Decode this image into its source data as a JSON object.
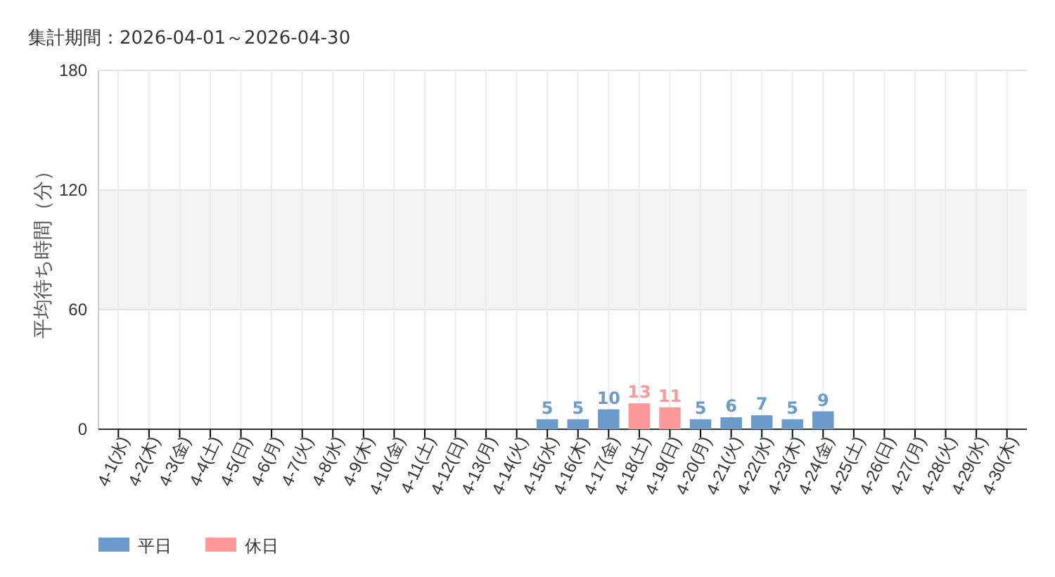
{
  "chart_data": {
    "type": "bar",
    "title": "集計期間：2026-04-01～2026-04-30",
    "ylabel": "平均待ち時間（分）",
    "categories": [
      "4-1(水)",
      "4-2(木)",
      "4-3(金)",
      "4-4(土)",
      "4-5(日)",
      "4-6(月)",
      "4-7(火)",
      "4-8(水)",
      "4-9(木)",
      "4-10(金)",
      "4-11(土)",
      "4-12(日)",
      "4-13(月)",
      "4-14(火)",
      "4-15(水)",
      "4-16(木)",
      "4-17(金)",
      "4-18(土)",
      "4-19(日)",
      "4-20(月)",
      "4-21(火)",
      "4-22(水)",
      "4-23(木)",
      "4-24(金)",
      "4-25(土)",
      "4-26(日)",
      "4-27(月)",
      "4-28(火)",
      "4-29(水)",
      "4-30(木)"
    ],
    "series": [
      {
        "name": "平日",
        "color": "#6b9bcb",
        "values": [
          null,
          null,
          null,
          null,
          null,
          null,
          null,
          null,
          null,
          null,
          null,
          null,
          null,
          null,
          5,
          5,
          10,
          null,
          null,
          5,
          6,
          7,
          5,
          9,
          null,
          null,
          null,
          null,
          null,
          null
        ]
      },
      {
        "name": "休日",
        "color": "#ff9999",
        "values": [
          null,
          null,
          null,
          null,
          null,
          null,
          null,
          null,
          null,
          null,
          null,
          null,
          null,
          null,
          null,
          null,
          null,
          13,
          11,
          null,
          null,
          null,
          null,
          null,
          null,
          null,
          null,
          null,
          null,
          null
        ]
      }
    ],
    "ylim": [
      0,
      180
    ],
    "yticks": [
      0,
      60,
      120,
      180
    ],
    "grid": true,
    "data_labels": true,
    "legend": "bottom left",
    "bands": [
      {
        "axis": "y",
        "from": 60,
        "to": 120,
        "color": "#f3f3f3"
      }
    ]
  }
}
